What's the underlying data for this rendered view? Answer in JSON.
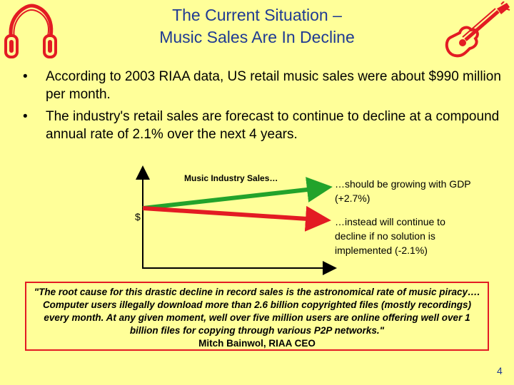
{
  "slide": {
    "title_line1": "The Current Situation –",
    "title_line2": "Music Sales Are In Decline",
    "bullets": [
      "According to 2003 RIAA data, US retail music sales were about $990 million per month.",
      "The industry's retail sales are forecast to continue to decline at a compound annual rate of 2.1% over the next 4 years."
    ],
    "bullet_glyph": "•",
    "chart": {
      "label": "Music Industry Sales…",
      "y_symbol": "$",
      "note_growth": "…should be growing with GDP (+2.7%)",
      "note_decline": "…instead will continue to decline if no solution is implemented (-2.1%)",
      "growth_color": "#22A32B",
      "decline_color": "#E31B23"
    },
    "quote_text": "\"The root cause for this drastic decline in record sales is the astronomical rate of music piracy…. Computer users illegally download more than 2.6 billion copyrighted files (mostly recordings) every month. At any given moment, well over five million users are online offering well over 1 billion files for copying through various P2P networks.\"",
    "quote_author": "Mitch Bainwol, RIAA CEO",
    "page_number": "4",
    "icons": [
      "headphones-icon",
      "guitar-icon"
    ],
    "colors": {
      "background": "#FFFF99",
      "title": "#1F3A93",
      "accent": "#E31B23"
    }
  }
}
